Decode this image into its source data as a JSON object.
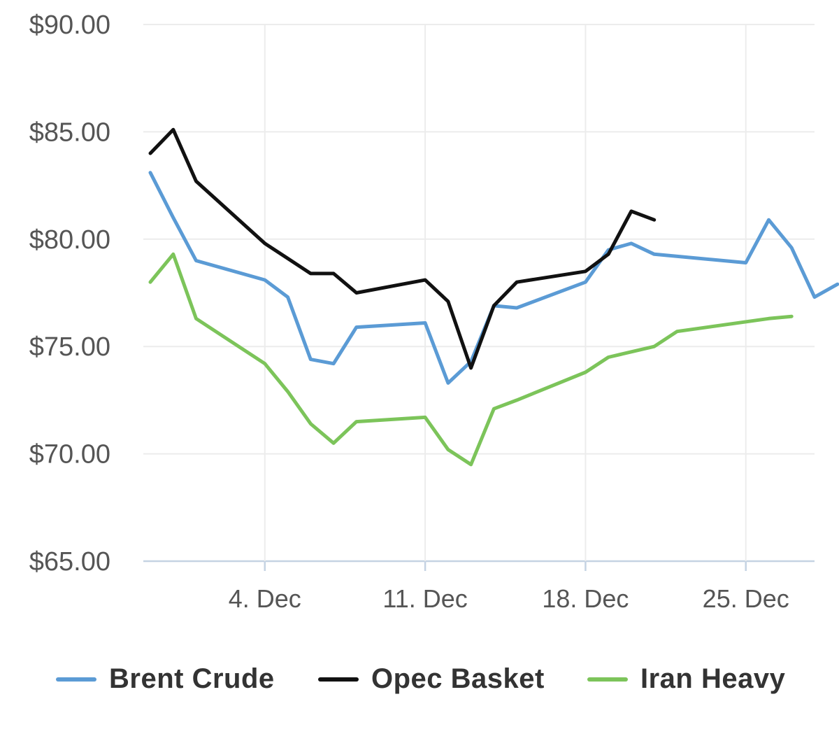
{
  "chart_data": {
    "type": "line",
    "ylim": [
      65,
      90
    ],
    "yticks": [
      {
        "value": 90,
        "label": "$90.00"
      },
      {
        "value": 85,
        "label": "$85.00"
      },
      {
        "value": 80,
        "label": "$80.00"
      },
      {
        "value": 75,
        "label": "$75.00"
      },
      {
        "value": 70,
        "label": "$70.00"
      },
      {
        "value": 65,
        "label": "$65.00"
      }
    ],
    "xlim": [
      "2023-11-29",
      "2023-12-28"
    ],
    "xticks": [
      {
        "value": "2023-12-04",
        "label": "4. Dec"
      },
      {
        "value": "2023-12-11",
        "label": "11. Dec"
      },
      {
        "value": "2023-12-18",
        "label": "18. Dec"
      },
      {
        "value": "2023-12-25",
        "label": "25. Dec"
      }
    ],
    "grid": true,
    "legend_position": "bottom",
    "series": [
      {
        "name": "Brent Crude",
        "color": "#5b9bd5",
        "points": [
          [
            "2023-11-29",
            83.1
          ],
          [
            "2023-11-30",
            81.0
          ],
          [
            "2023-12-01",
            79.0
          ],
          [
            "2023-12-04",
            78.1
          ],
          [
            "2023-12-05",
            77.3
          ],
          [
            "2023-12-06",
            74.4
          ],
          [
            "2023-12-07",
            74.2
          ],
          [
            "2023-12-08",
            75.9
          ],
          [
            "2023-12-11",
            76.1
          ],
          [
            "2023-12-12",
            73.3
          ],
          [
            "2023-12-13",
            74.3
          ],
          [
            "2023-12-14",
            76.9
          ],
          [
            "2023-12-15",
            76.8
          ],
          [
            "2023-12-18",
            78.0
          ],
          [
            "2023-12-19",
            79.5
          ],
          [
            "2023-12-20",
            79.8
          ],
          [
            "2023-12-21",
            79.3
          ],
          [
            "2023-12-25",
            78.9
          ],
          [
            "2023-12-26",
            80.9
          ],
          [
            "2023-12-27",
            79.6
          ],
          [
            "2023-12-28",
            77.3
          ],
          [
            "2023-12-29",
            77.9
          ]
        ]
      },
      {
        "name": "Opec Basket",
        "color": "#111111",
        "points": [
          [
            "2023-11-29",
            84.0
          ],
          [
            "2023-11-30",
            85.1
          ],
          [
            "2023-12-01",
            82.7
          ],
          [
            "2023-12-04",
            79.8
          ],
          [
            "2023-12-05",
            79.1
          ],
          [
            "2023-12-06",
            78.4
          ],
          [
            "2023-12-07",
            78.4
          ],
          [
            "2023-12-08",
            77.5
          ],
          [
            "2023-12-11",
            78.1
          ],
          [
            "2023-12-12",
            77.1
          ],
          [
            "2023-12-13",
            74.0
          ],
          [
            "2023-12-14",
            76.9
          ],
          [
            "2023-12-15",
            78.0
          ],
          [
            "2023-12-18",
            78.5
          ],
          [
            "2023-12-19",
            79.3
          ],
          [
            "2023-12-20",
            81.3
          ],
          [
            "2023-12-21",
            80.9
          ]
        ]
      },
      {
        "name": "Iran Heavy",
        "color": "#7cc45a",
        "points": [
          [
            "2023-11-29",
            78.0
          ],
          [
            "2023-11-30",
            79.3
          ],
          [
            "2023-12-01",
            76.3
          ],
          [
            "2023-12-04",
            74.2
          ],
          [
            "2023-12-05",
            72.9
          ],
          [
            "2023-12-06",
            71.4
          ],
          [
            "2023-12-07",
            70.5
          ],
          [
            "2023-12-08",
            71.5
          ],
          [
            "2023-12-11",
            71.7
          ],
          [
            "2023-12-12",
            70.2
          ],
          [
            "2023-12-13",
            69.5
          ],
          [
            "2023-12-14",
            72.1
          ],
          [
            "2023-12-15",
            72.5
          ],
          [
            "2023-12-18",
            73.8
          ],
          [
            "2023-12-19",
            74.5
          ],
          [
            "2023-12-21",
            75.0
          ],
          [
            "2023-12-22",
            75.7
          ],
          [
            "2023-12-26",
            76.3
          ],
          [
            "2023-12-27",
            76.4
          ]
        ]
      }
    ]
  }
}
